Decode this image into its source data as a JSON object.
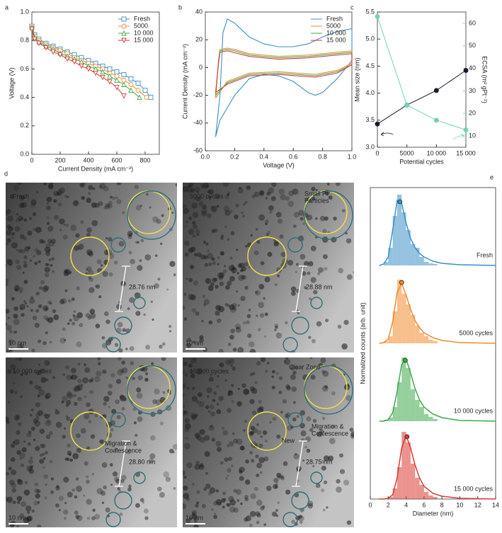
{
  "chart_data": [
    {
      "type": "line",
      "panel_label": "a",
      "xlabel": "Current Density (mA cm⁻²)",
      "ylabel": "Voltage (V)",
      "xlim": [
        0,
        900
      ],
      "xticks": [
        0,
        200,
        400,
        600,
        800
      ],
      "ylim": [
        0,
        1.0
      ],
      "yticks": [
        {
          "value": 0,
          "label": "0.0"
        },
        0.2,
        0.4,
        0.6,
        0.8,
        {
          "value": 1,
          "label": "1.0"
        }
      ],
      "legend": "upper right",
      "series": [
        {
          "name": "Fresh",
          "color": "#3d8fc6",
          "marker": "square",
          "x": [
            0,
            20,
            50,
            100,
            150,
            200,
            250,
            300,
            350,
            400,
            450,
            500,
            550,
            600,
            650,
            700,
            750,
            800,
            840
          ],
          "values": [
            0.9,
            0.84,
            0.81,
            0.78,
            0.76,
            0.74,
            0.72,
            0.7,
            0.68,
            0.66,
            0.64,
            0.62,
            0.6,
            0.58,
            0.56,
            0.53,
            0.5,
            0.45,
            0.4
          ]
        },
        {
          "name": "5000",
          "color": "#f08a2c",
          "marker": "circle",
          "x": [
            0,
            20,
            50,
            100,
            150,
            200,
            250,
            300,
            350,
            400,
            450,
            500,
            550,
            600,
            650,
            700,
            750,
            810
          ],
          "values": [
            0.89,
            0.83,
            0.8,
            0.77,
            0.75,
            0.73,
            0.71,
            0.68,
            0.66,
            0.64,
            0.62,
            0.6,
            0.57,
            0.55,
            0.52,
            0.49,
            0.45,
            0.4
          ]
        },
        {
          "name": "10 000",
          "color": "#3ea94b",
          "marker": "triangle-up",
          "x": [
            0,
            20,
            50,
            100,
            150,
            200,
            250,
            300,
            350,
            400,
            450,
            500,
            550,
            600,
            650,
            700,
            760
          ],
          "values": [
            0.89,
            0.82,
            0.79,
            0.76,
            0.74,
            0.71,
            0.69,
            0.67,
            0.65,
            0.62,
            0.6,
            0.58,
            0.55,
            0.52,
            0.49,
            0.45,
            0.4
          ]
        },
        {
          "name": "15 000",
          "color": "#d83a33",
          "marker": "triangle-down",
          "x": [
            0,
            20,
            50,
            100,
            150,
            200,
            250,
            300,
            350,
            400,
            450,
            500,
            550,
            600,
            650
          ],
          "values": [
            0.88,
            0.81,
            0.78,
            0.75,
            0.72,
            0.7,
            0.67,
            0.65,
            0.62,
            0.6,
            0.57,
            0.54,
            0.51,
            0.47,
            0.41
          ]
        }
      ]
    },
    {
      "type": "line",
      "panel_label": "b",
      "xlabel": "Voltage (V)",
      "ylabel": "Current Density (mA cm⁻²)",
      "xlim": [
        0,
        1.0
      ],
      "xticks": [
        {
          "value": 0,
          "label": "0.0"
        },
        0.2,
        0.4,
        0.6,
        0.8,
        {
          "value": 1,
          "label": "1.0"
        }
      ],
      "ylim": [
        -60,
        40
      ],
      "yticks": [
        -60,
        -40,
        -20,
        0,
        20,
        40
      ],
      "legend": "upper right",
      "series": [
        {
          "name": "Fresh",
          "color": "#3d8fc6",
          "x": [
            0.07,
            0.1,
            0.12,
            0.15,
            0.2,
            0.3,
            0.4,
            0.5,
            0.6,
            0.7,
            0.8,
            0.9,
            1.0,
            1.0,
            0.9,
            0.8,
            0.75,
            0.7,
            0.6,
            0.5,
            0.4,
            0.3,
            0.2,
            0.1,
            0.07
          ],
          "values": [
            -50,
            -20,
            25,
            35,
            32,
            22,
            17,
            15,
            15,
            17,
            22,
            26,
            28,
            5,
            -8,
            -18,
            -20,
            -18,
            -10,
            -6,
            -5,
            -8,
            -20,
            -38,
            -50
          ]
        },
        {
          "name": "5000",
          "color": "#f08a2c",
          "x": [
            0.07,
            0.09,
            0.1,
            0.15,
            0.2,
            0.3,
            0.5,
            0.7,
            0.9,
            1.0,
            1.0,
            0.9,
            0.75,
            0.5,
            0.3,
            0.15,
            0.07
          ],
          "values": [
            -22,
            5,
            13,
            14,
            13,
            10,
            8,
            9,
            11,
            12,
            3,
            -2,
            -5,
            -3,
            -4,
            -10,
            -22
          ]
        },
        {
          "name": "10 000",
          "color": "#3ea94b",
          "x": [
            0.07,
            0.09,
            0.1,
            0.15,
            0.2,
            0.3,
            0.5,
            0.7,
            0.9,
            1.0,
            1.0,
            0.9,
            0.75,
            0.5,
            0.3,
            0.15,
            0.07
          ],
          "values": [
            -20,
            4,
            12,
            13,
            12,
            9,
            7,
            8,
            10,
            11,
            2,
            -3,
            -6,
            -4,
            -5,
            -11,
            -20
          ]
        },
        {
          "name": "15 000",
          "color": "#d83a33",
          "x": [
            0.07,
            0.09,
            0.1,
            0.15,
            0.3,
            0.5,
            0.7,
            0.9,
            1.0,
            1.0,
            0.9,
            0.75,
            0.5,
            0.3,
            0.15,
            0.07
          ],
          "values": [
            -18,
            3,
            11,
            12,
            8,
            6,
            7,
            9,
            10,
            2,
            -4,
            -7,
            -5,
            -6,
            -12,
            -18
          ]
        }
      ]
    },
    {
      "type": "line",
      "panel_label": "c",
      "xlabel": "Potential cycles",
      "ylabel": "Mean size (nm)",
      "y2label": "ECSA (m² gPt⁻¹)",
      "xlim": [
        0,
        15000
      ],
      "xticks": [
        0,
        5000,
        {
          "value": 10000,
          "label": "10 000"
        },
        {
          "value": 15000,
          "label": "15 000"
        }
      ],
      "ylim": [
        3.0,
        5.5
      ],
      "yticks": [
        {
          "value": 3,
          "label": "3.0"
        },
        3.5,
        {
          "value": 4,
          "label": "4.0"
        },
        4.5,
        {
          "value": 5,
          "label": "5.0"
        },
        5.5
      ],
      "y2lim": [
        5,
        65
      ],
      "y2ticks": [
        10,
        20,
        30,
        40,
        50,
        60
      ],
      "series": [
        {
          "color": "#1a1a2e",
          "marker": "circle",
          "x": [
            0,
            5000,
            10000,
            15000
          ],
          "values": [
            3.43,
            3.78,
            4.05,
            4.42
          ]
        },
        {
          "color": "#74d2b4",
          "marker": "circle",
          "axis": "y2",
          "x": [
            0,
            5000,
            10000,
            15000
          ],
          "values": [
            63,
            23.7,
            17,
            12.7
          ]
        }
      ]
    },
    {
      "type": "histogram",
      "panel_label": "e",
      "xlabel": "Diameter (nm)",
      "ylabel": "Normalized counts (arb. unit)",
      "xlim": [
        0,
        14
      ],
      "xticks": [
        0,
        2,
        4,
        6,
        8,
        10,
        12,
        14
      ],
      "ylim": [
        0,
        1.1
      ],
      "bins": [
        1.5,
        2,
        2.5,
        3,
        3.5,
        4,
        4.5,
        5,
        5.5,
        6,
        6.5,
        7,
        7.5
      ],
      "fit_x": [
        1,
        1.5,
        2,
        2.5,
        3,
        3.5,
        4,
        4.5,
        5,
        5.5,
        6,
        7,
        8,
        10,
        14
      ],
      "series": [
        {
          "name": "Fresh",
          "color": "#3d8fc6",
          "counts": [
            0.05,
            0.25,
            0.7,
            1.0,
            0.75,
            0.5,
            0.3,
            0.25,
            0.12,
            0.05,
            0.03,
            0.02
          ],
          "fit": [
            0,
            0.02,
            0.12,
            0.5,
            0.92,
            0.88,
            0.6,
            0.38,
            0.25,
            0.17,
            0.12,
            0.06,
            0.03,
            0.01,
            0
          ],
          "mean": {
            "x": 3.3,
            "y": 0.9
          }
        },
        {
          "name": "5000 cycles",
          "color": "#f08a2c",
          "counts": [
            0.03,
            0.1,
            0.45,
            0.9,
            0.7,
            0.55,
            0.4,
            0.25,
            0.15,
            0.1,
            0.05,
            0.03
          ],
          "fit": [
            0,
            0.01,
            0.06,
            0.3,
            0.72,
            0.85,
            0.68,
            0.48,
            0.32,
            0.22,
            0.15,
            0.08,
            0.04,
            0.01,
            0
          ],
          "mean": {
            "x": 3.5,
            "y": 0.86
          }
        },
        {
          "name": "10 000 cycles",
          "color": "#3ea94b",
          "counts": [
            0.02,
            0.05,
            0.2,
            0.55,
            0.9,
            0.75,
            0.45,
            0.3,
            0.2,
            0.1,
            0.06,
            0.03
          ],
          "fit": [
            0,
            0,
            0.02,
            0.12,
            0.42,
            0.8,
            0.88,
            0.68,
            0.46,
            0.3,
            0.2,
            0.1,
            0.05,
            0.01,
            0
          ],
          "mean": {
            "x": 3.9,
            "y": 0.86
          }
        },
        {
          "name": "15 000 cycles",
          "color": "#d83a33",
          "counts": [
            0.01,
            0.03,
            0.15,
            0.45,
            0.95,
            0.8,
            0.5,
            0.3,
            0.2,
            0.1,
            0.05,
            0.03
          ],
          "fit": [
            0,
            0,
            0.01,
            0.06,
            0.3,
            0.72,
            0.9,
            0.72,
            0.48,
            0.3,
            0.18,
            0.08,
            0.04,
            0.01,
            0
          ],
          "mean": {
            "x": 4.1,
            "y": 0.88
          }
        }
      ]
    }
  ],
  "micrographs": {
    "panel_label": "d",
    "images": [
      {
        "title": "Fresh",
        "scale_bar": "10 nm",
        "distance": "28.76 nm",
        "annotations": []
      },
      {
        "title": "5000 cycles",
        "scale_bar": "10 nm",
        "distance": "28.88 nm",
        "annotations": [
          [
            "Small Pt",
            "Particles"
          ]
        ]
      },
      {
        "title": "10 000 cycles",
        "scale_bar": "10 nm",
        "distance": "28.80 nm",
        "annotations": [
          [
            "Migration &",
            "Coalescence"
          ]
        ]
      },
      {
        "title": "15 000 cycles",
        "scale_bar": "10 nm",
        "distance": "28.75 nm",
        "annotations": [
          [
            "Clear Zone"
          ],
          [
            "New"
          ],
          [
            "Migration &",
            "Coalescence"
          ]
        ]
      }
    ]
  }
}
